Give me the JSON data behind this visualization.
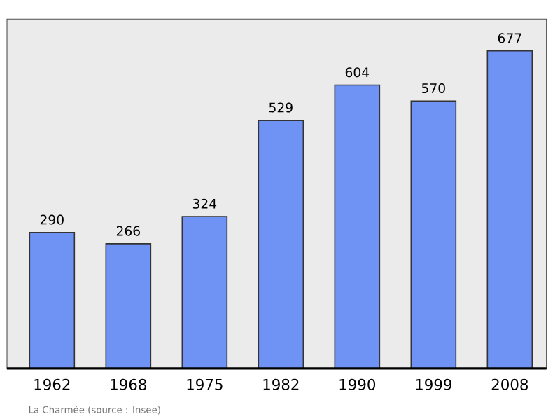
{
  "chart_data": {
    "type": "bar",
    "categories": [
      "1962",
      "1968",
      "1975",
      "1982",
      "1990",
      "1999",
      "2008"
    ],
    "values": [
      290,
      266,
      324,
      529,
      604,
      570,
      677
    ],
    "color": "#6f93f5",
    "data_labels": true,
    "annotations": [
      "La Charmée    (source : Insee)"
    ]
  }
}
